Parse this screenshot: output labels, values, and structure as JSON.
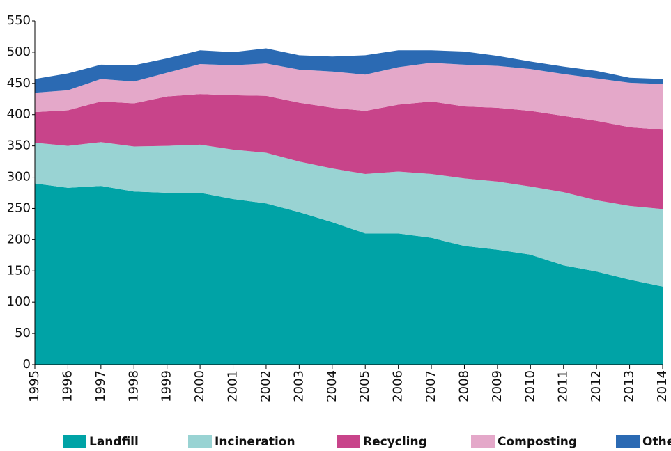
{
  "chart_data": {
    "type": "area",
    "categories": [
      "1995",
      "1996",
      "1997",
      "1998",
      "1999",
      "2000",
      "2001",
      "2002",
      "2003",
      "2004",
      "2005",
      "2006",
      "2007",
      "2008",
      "2009",
      "2010",
      "2011",
      "2012",
      "2013",
      "2014"
    ],
    "series": [
      {
        "name": "Landfill",
        "color": "#00a3a6",
        "values": [
          290,
          283,
          286,
          277,
          275,
          275,
          265,
          258,
          244,
          228,
          210,
          210,
          203,
          190,
          184,
          176,
          159,
          149,
          136,
          125
        ]
      },
      {
        "name": "Incineration",
        "color": "#99d3d3",
        "values": [
          65,
          67,
          70,
          72,
          75,
          77,
          79,
          81,
          81,
          86,
          95,
          99,
          102,
          108,
          109,
          109,
          117,
          114,
          118,
          124
        ]
      },
      {
        "name": "Recycling",
        "color": "#c8448a",
        "values": [
          49,
          57,
          65,
          69,
          79,
          81,
          87,
          91,
          94,
          97,
          101,
          107,
          116,
          115,
          118,
          121,
          122,
          127,
          126,
          127
        ]
      },
      {
        "name": "Composting",
        "color": "#e4a8c9",
        "values": [
          31,
          32,
          36,
          35,
          38,
          48,
          48,
          52,
          53,
          58,
          58,
          60,
          62,
          67,
          67,
          67,
          67,
          68,
          71,
          73
        ]
      },
      {
        "name": "Other",
        "color": "#2b6ab3",
        "values": [
          22,
          27,
          23,
          26,
          23,
          22,
          21,
          24,
          23,
          24,
          31,
          27,
          20,
          21,
          16,
          12,
          12,
          12,
          8,
          8
        ]
      }
    ],
    "ylim": [
      0,
      550
    ],
    "yticks": [
      0,
      50,
      100,
      150,
      200,
      250,
      300,
      350,
      400,
      450,
      500,
      550
    ]
  }
}
